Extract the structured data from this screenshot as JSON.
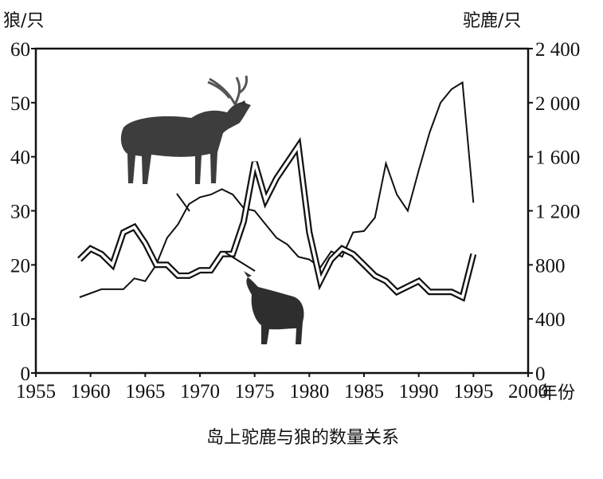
{
  "chart_data": {
    "type": "line",
    "title": "岛上驼鹿与狼的数量关系",
    "xlabel": "年份",
    "ylabel_left": "狼/只",
    "ylabel_right": "驼鹿/只",
    "x_ticks": [
      "1955",
      "1960",
      "1965",
      "1970",
      "1975",
      "1980",
      "1985",
      "1990",
      "1995",
      "2000"
    ],
    "y_left_ticks": [
      "0",
      "10",
      "20",
      "30",
      "40",
      "50",
      "60"
    ],
    "y_right_ticks": [
      "0",
      "400",
      "800",
      "1 200",
      "1 600",
      "2 000",
      "2 400"
    ],
    "xlim": [
      1955,
      2000
    ],
    "ylim_left": [
      0,
      60
    ],
    "ylim_right": [
      0,
      2400
    ],
    "grid": false,
    "legend": "none",
    "series": [
      {
        "axis": "right",
        "style": "single",
        "x": [
          1959,
          1961,
          1963,
          1964,
          1965,
          1966,
          1967,
          1968,
          1969,
          1970,
          1971,
          1972,
          1973,
          1974,
          1975,
          1976,
          1977,
          1978,
          1979,
          1980,
          1981,
          1982,
          1983,
          1984,
          1985,
          1986,
          1987,
          1988,
          1989,
          1990,
          1991,
          1992,
          1993,
          1994,
          1995
        ],
        "values": [
          560,
          620,
          620,
          700,
          680,
          800,
          1000,
          1100,
          1250,
          1300,
          1320,
          1360,
          1320,
          1220,
          1200,
          1100,
          1000,
          950,
          860,
          840,
          780,
          900,
          860,
          1040,
          1050,
          1150,
          1550,
          1320,
          1200,
          1500,
          1780,
          2000,
          2100,
          2150,
          1260
        ]
      },
      {
        "axis": "left",
        "style": "double",
        "x": [
          1959,
          1960,
          1961,
          1962,
          1963,
          1964,
          1965,
          1966,
          1967,
          1968,
          1969,
          1970,
          1971,
          1972,
          1973,
          1974,
          1975,
          1976,
          1977,
          1978,
          1979,
          1980,
          1981,
          1982,
          1983,
          1984,
          1985,
          1986,
          1987,
          1988,
          1989,
          1990,
          1991,
          1992,
          1993,
          1994,
          1995
        ],
        "values": [
          21,
          23,
          22,
          20,
          26,
          27,
          24,
          20,
          20,
          18,
          18,
          19,
          19,
          22,
          22,
          28,
          39,
          32,
          36,
          39,
          42,
          26,
          17,
          21,
          23,
          22,
          20,
          18,
          17,
          15,
          16,
          17,
          15,
          15,
          15,
          14,
          22
        ]
      }
    ]
  }
}
